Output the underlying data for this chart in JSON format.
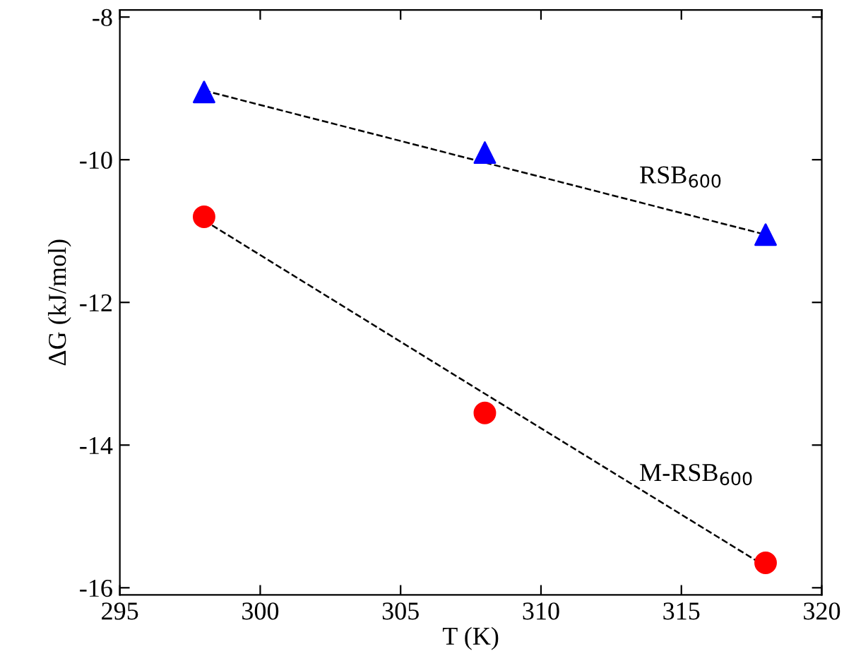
{
  "chart_data": {
    "type": "scatter",
    "xlabel": "T (K)",
    "ylabel": "ΔG (kJ/mol)",
    "x": [
      298,
      308,
      318
    ],
    "series": [
      {
        "name": "RSB$_{600}$",
        "color": "#0000ff",
        "values": [
          -9.05,
          -9.9,
          -11.05
        ],
        "marker": "triangle"
      },
      {
        "name": "M-RSB$_{600}$",
        "color": "#ff0000",
        "values": [
          -10.8,
          -13.55,
          -15.65
        ],
        "marker": "circle"
      },
      {
        "type": "line",
        "color": "#000000",
        "values": [
          -9.03,
          -10.04,
          -11.05
        ],
        "line_style": "dashed",
        "marker": "none"
      },
      {
        "type": "line",
        "color": "#000000",
        "values": [
          -10.85,
          -13.28,
          -15.7
        ],
        "line_style": "dashed",
        "marker": "none"
      }
    ],
    "xlim": [
      295,
      320
    ],
    "xticks": [
      295,
      300,
      305,
      310,
      315,
      320
    ],
    "ylim": [
      -16.1,
      -7.9
    ],
    "yticks": [
      -16,
      -14,
      -12,
      -10,
      -8
    ],
    "grid": false,
    "legend": false
  }
}
